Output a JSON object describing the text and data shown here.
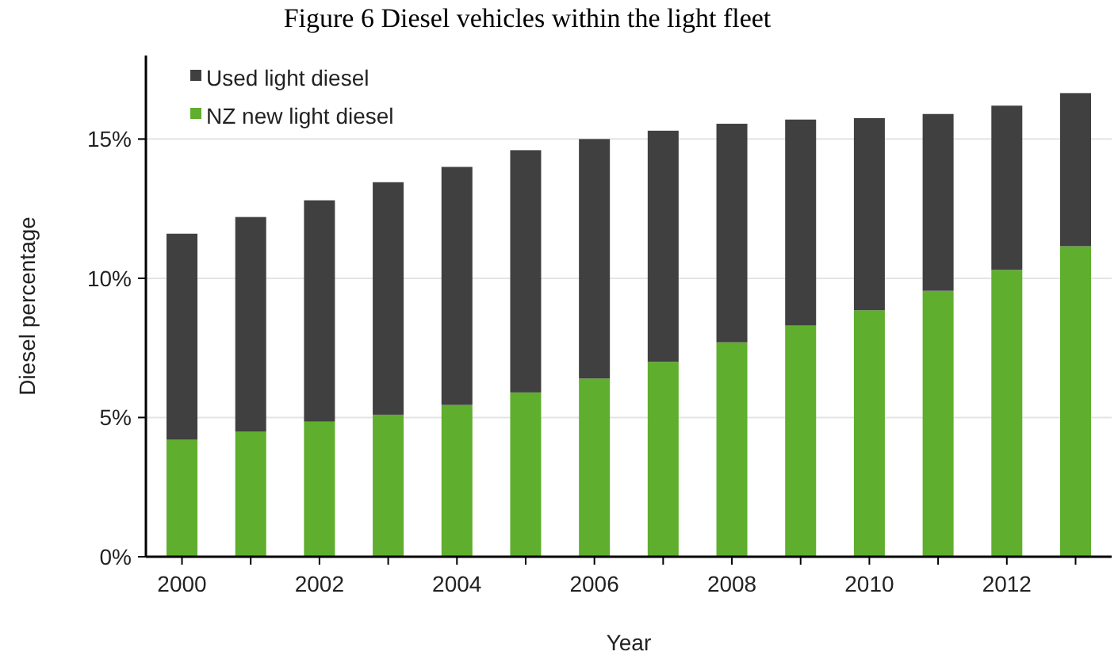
{
  "chart_data": {
    "type": "bar",
    "title": "Figure 6 Diesel vehicles within the light fleet",
    "xlabel": "Year",
    "ylabel": "Diesel percentage",
    "categories": [
      "2000",
      null,
      "2002",
      null,
      "2004",
      null,
      "2006",
      null,
      "2008",
      null,
      "2010",
      null,
      "2012",
      null
    ],
    "stacked": true,
    "series": [
      {
        "name": "NZ new light diesel",
        "color": "#5fae2e",
        "values": [
          4.2,
          4.5,
          4.85,
          5.1,
          5.45,
          5.9,
          6.4,
          7.0,
          7.7,
          8.3,
          8.85,
          9.55,
          10.3,
          11.15
        ]
      },
      {
        "name": "Used light diesel",
        "color": "#404040",
        "values": [
          7.4,
          7.7,
          7.95,
          8.35,
          8.55,
          8.7,
          8.6,
          8.3,
          7.85,
          7.4,
          6.9,
          6.35,
          5.9,
          5.5
        ]
      }
    ],
    "ylim": [
      0,
      18
    ],
    "yticks": [
      {
        "value": 0,
        "label": "0%"
      },
      {
        "value": 5,
        "label": "5%"
      },
      {
        "value": 10,
        "label": "10%"
      },
      {
        "value": 15,
        "label": "15%"
      }
    ],
    "grid": "y",
    "legend": "top left"
  }
}
